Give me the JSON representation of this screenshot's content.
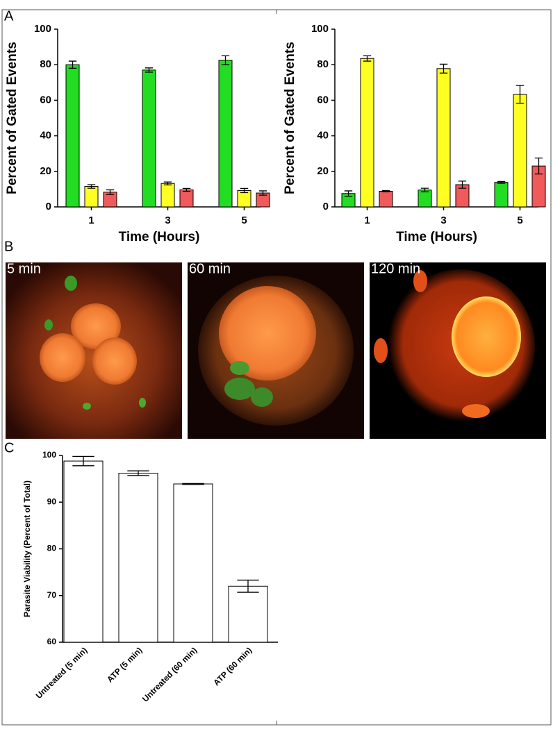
{
  "panel_labels": {
    "a": "A",
    "b": "B",
    "c": "C"
  },
  "images": [
    {
      "label": "5 min"
    },
    {
      "label": "60 min"
    },
    {
      "label": "120 min"
    }
  ],
  "chart_data": [
    {
      "type": "bar",
      "x_label": "Time (Hours)",
      "y_label": "Percent of Gated Events",
      "categories": [
        "1",
        "3",
        "5"
      ],
      "series": [
        {
          "color": "#22dd22",
          "values": [
            80,
            77,
            82.5
          ],
          "errors": [
            2,
            1.2,
            2.5
          ]
        },
        {
          "color": "#ffff22",
          "values": [
            11.5,
            13.2,
            9.2
          ],
          "errors": [
            1,
            0.8,
            1.2
          ]
        },
        {
          "color": "#f05a5a",
          "values": [
            8.3,
            9.6,
            7.8
          ],
          "errors": [
            1.3,
            0.8,
            1.2
          ]
        }
      ],
      "ylim": [
        0,
        100
      ],
      "yticks": [
        0,
        20,
        40,
        60,
        80,
        100
      ]
    },
    {
      "type": "bar",
      "x_label": "Time (Hours)",
      "y_label": "Percent of Gated Events",
      "categories": [
        "1",
        "3",
        "5"
      ],
      "series": [
        {
          "color": "#22dd22",
          "values": [
            7.5,
            9.5,
            13.8
          ],
          "errors": [
            1.5,
            1,
            0.5
          ]
        },
        {
          "color": "#ffff22",
          "values": [
            83.5,
            77.8,
            63.3
          ],
          "errors": [
            1.5,
            2.5,
            5
          ]
        },
        {
          "color": "#f05a5a",
          "values": [
            8.8,
            12.5,
            23
          ],
          "errors": [
            0.3,
            2,
            4.5
          ]
        }
      ],
      "ylim": [
        0,
        100
      ],
      "yticks": [
        0,
        20,
        40,
        60,
        80,
        100
      ]
    },
    {
      "type": "bar",
      "y_label": "Parasite Viability (Percent of Total)",
      "categories": [
        "Untreated (5 min)",
        "ATP (5 min)",
        "Untreated (60 min)",
        "ATP (60 min)"
      ],
      "series": [
        {
          "color": "#ffffff",
          "values": [
            98.8,
            96.2,
            93.9,
            72
          ],
          "errors": [
            1,
            0.5,
            0.1,
            1.3
          ]
        }
      ],
      "ylim": [
        60,
        100
      ],
      "yticks": [
        60,
        70,
        80,
        90,
        100
      ]
    }
  ]
}
